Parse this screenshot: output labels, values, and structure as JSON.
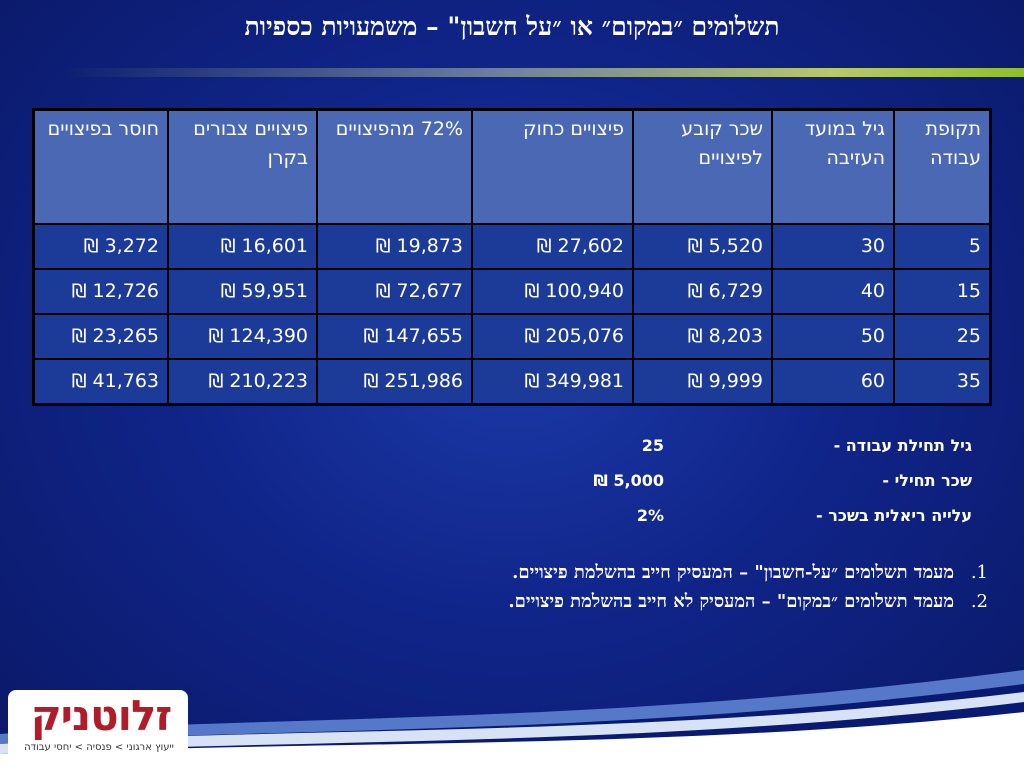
{
  "title": "תשלומים ״במקום״ או ״על חשבון\" – משמעויות כספיות",
  "table": {
    "headers": [
      "תקופת עבודה",
      "גיל במועד העזיבה",
      "שכר קובע לפיצויים",
      "פיצויים כחוק",
      "72% מהפיצויים",
      "פיצויים צבורים בקרן",
      "חוסר בפיצויים"
    ],
    "rows": [
      [
        "5",
        "30",
        "5,520 ₪",
        "27,602 ₪",
        "19,873 ₪",
        "16,601 ₪",
        "3,272 ₪"
      ],
      [
        "15",
        "40",
        "6,729 ₪",
        "100,940 ₪",
        "72,677 ₪",
        "59,951 ₪",
        "12,726 ₪"
      ],
      [
        "25",
        "50",
        "8,203 ₪",
        "205,076 ₪",
        "147,655 ₪",
        "124,390 ₪",
        "23,265 ₪"
      ],
      [
        "35",
        "60",
        "9,999 ₪",
        "349,981 ₪",
        "251,986 ₪",
        "210,223 ₪",
        "41,763 ₪"
      ]
    ]
  },
  "params": [
    {
      "label": "גיל תחילת עבודה -",
      "value": "25"
    },
    {
      "label": "שכר תחילי -",
      "value": "5,000 ₪"
    },
    {
      "label": "עלייה ריאלית בשכר -",
      "value": "2%"
    }
  ],
  "notes": [
    {
      "num": "1.",
      "text": "מעמד תשלומים ״על-חשבון\" – המעסיק חייב בהשלמת פיצויים."
    },
    {
      "num": "2.",
      "text": "מעמד תשלומים ״במקום\" – המעסיק לא חייב בהשלמת פיצויים."
    }
  ],
  "logo": {
    "name": "זלוטניק",
    "tagline": "ייעוץ ארגוני > פנסיה > יחסי עבודה"
  },
  "colors": {
    "background": "#10258a",
    "header_cell": "#4a68b4",
    "body_cell": "#1c3a98",
    "logo_red": "#b01c2a",
    "accent_green": "#8fbf2a"
  }
}
